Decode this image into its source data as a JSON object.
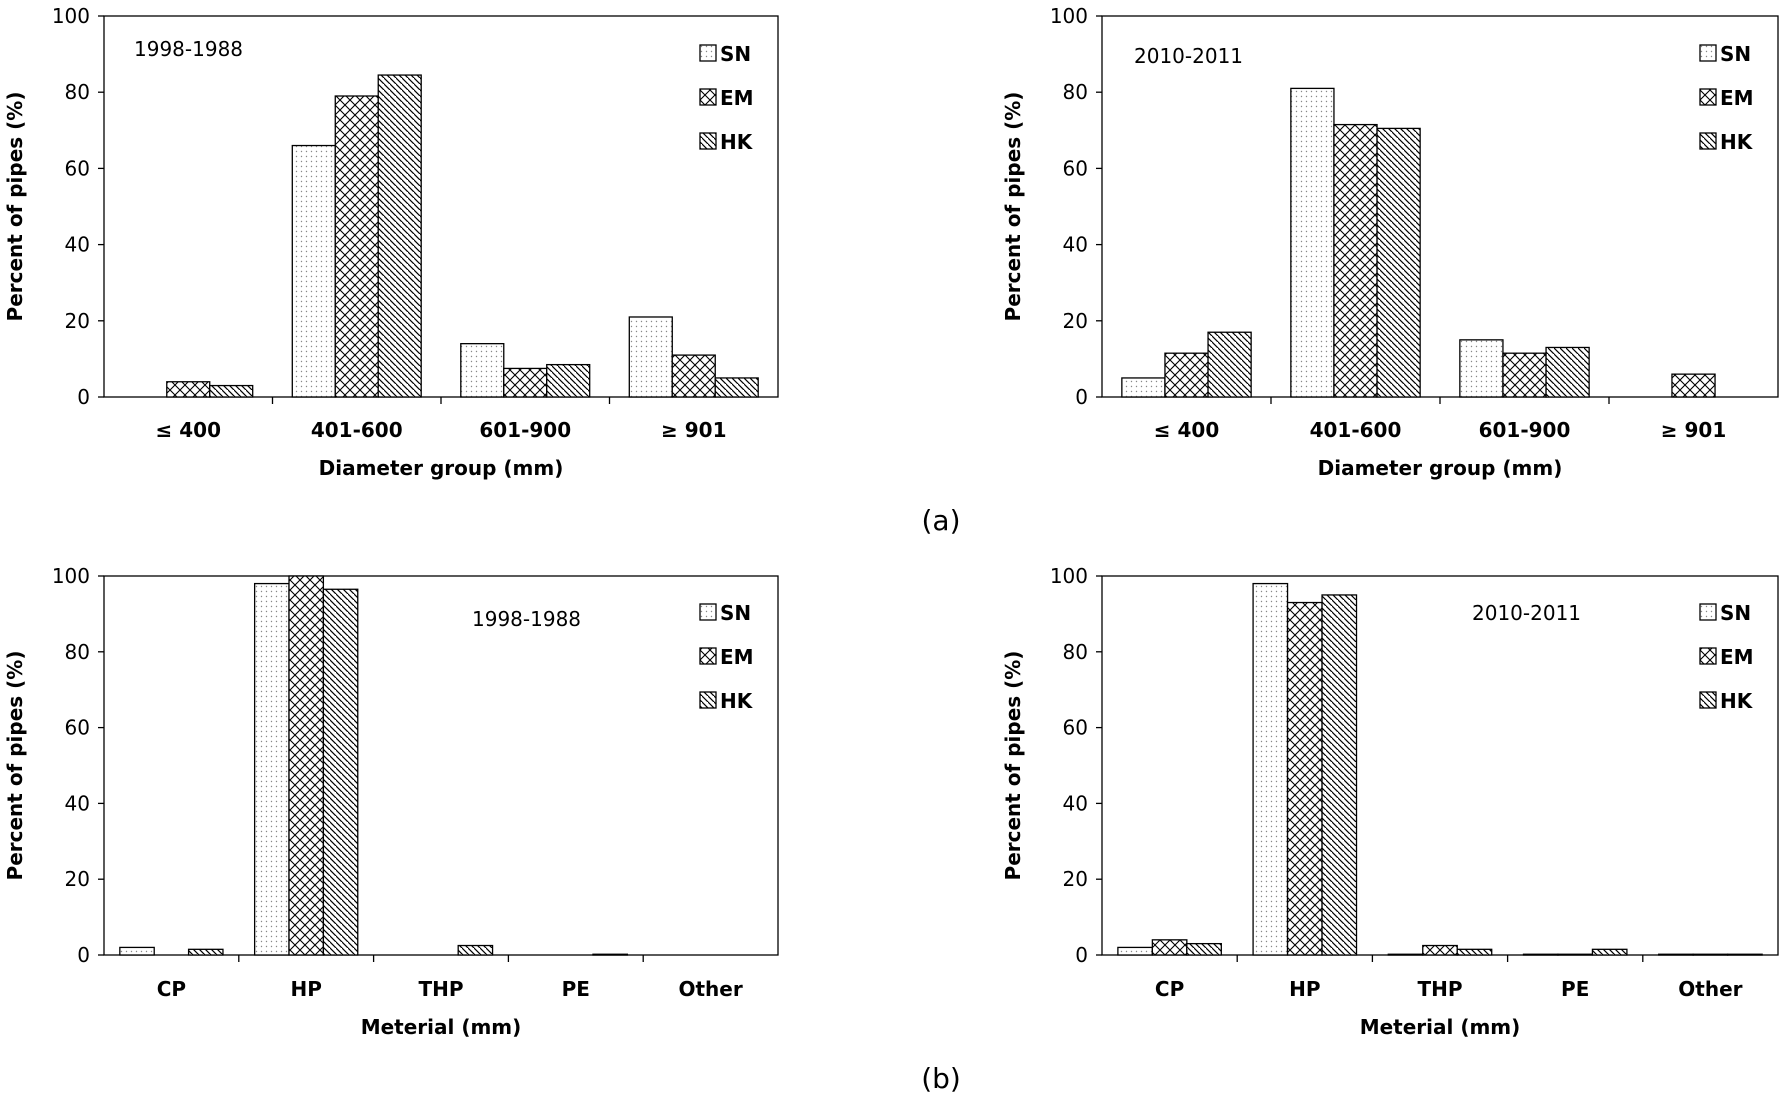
{
  "panel_labels": [
    "(a)",
    "(b)"
  ],
  "legend_fill": {
    "SN": "pattern-dots",
    "EM": "pattern-crosshatch",
    "HK": "pattern-diagonal"
  },
  "chart_data": [
    {
      "type": "bar",
      "title": "",
      "annotation": "1998-1988",
      "xlabel": "Diameter group (mm)",
      "ylabel": "Percent of pipes (%)",
      "ylim": [
        0,
        100
      ],
      "yticks": [
        0,
        20,
        40,
        60,
        80,
        100
      ],
      "categories": [
        "≤ 400",
        "401-600",
        "601-900",
        "≥ 901"
      ],
      "legend": "top-right",
      "grid": false,
      "series": [
        {
          "name": "SN",
          "values": [
            0,
            66,
            14,
            21
          ]
        },
        {
          "name": "EM",
          "values": [
            4,
            79,
            7.5,
            11
          ]
        },
        {
          "name": "HK",
          "values": [
            3,
            84.5,
            8.5,
            5
          ]
        }
      ]
    },
    {
      "type": "bar",
      "title": "",
      "annotation": "2010-2011",
      "xlabel": "Diameter group (mm)",
      "ylabel": "Percent of pipes (%)",
      "ylim": [
        0,
        100
      ],
      "yticks": [
        0,
        20,
        40,
        60,
        80,
        100
      ],
      "categories": [
        "≤ 400",
        "401-600",
        "601-900",
        "≥ 901"
      ],
      "legend": "top-right",
      "grid": false,
      "series": [
        {
          "name": "SN",
          "values": [
            5,
            81,
            15,
            0
          ]
        },
        {
          "name": "EM",
          "values": [
            11.5,
            71.5,
            11.5,
            6
          ]
        },
        {
          "name": "HK",
          "values": [
            17,
            70.5,
            13,
            0
          ]
        }
      ]
    },
    {
      "type": "bar",
      "title": "",
      "annotation": "1998-1988",
      "xlabel": "Meterial (mm)",
      "ylabel": "Percent of pipes (%)",
      "ylim": [
        0,
        100
      ],
      "yticks": [
        0,
        20,
        40,
        60,
        80,
        100
      ],
      "categories": [
        "CP",
        "HP",
        "THP",
        "PE",
        "Other"
      ],
      "legend": "top-right",
      "grid": false,
      "series": [
        {
          "name": "SN",
          "values": [
            2,
            98,
            0,
            0,
            0
          ]
        },
        {
          "name": "EM",
          "values": [
            0,
            100,
            0,
            0,
            0
          ]
        },
        {
          "name": "HK",
          "values": [
            1.5,
            96.5,
            2.5,
            0.2,
            0
          ]
        }
      ]
    },
    {
      "type": "bar",
      "title": "",
      "annotation": "2010-2011",
      "xlabel": "Meterial (mm)",
      "ylabel": "Percent of pipes (%)",
      "ylim": [
        0,
        100
      ],
      "yticks": [
        0,
        20,
        40,
        60,
        80,
        100
      ],
      "categories": [
        "CP",
        "HP",
        "THP",
        "PE",
        "Other"
      ],
      "legend": "top-right",
      "grid": false,
      "series": [
        {
          "name": "SN",
          "values": [
            2,
            98,
            0.2,
            0.2,
            0.2
          ]
        },
        {
          "name": "EM",
          "values": [
            4,
            93,
            2.5,
            0.2,
            0.2
          ]
        },
        {
          "name": "HK",
          "values": [
            3,
            95,
            1.5,
            1.5,
            0.2
          ]
        }
      ]
    }
  ]
}
